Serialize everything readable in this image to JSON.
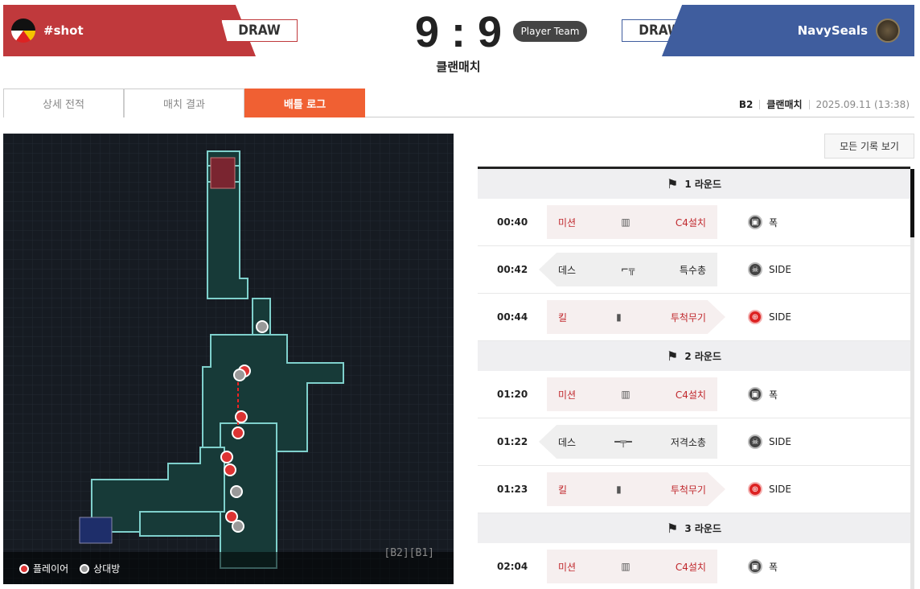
{
  "header": {
    "left_team": "#shot",
    "left_result": "DRAW",
    "score": "9 : 9",
    "player_type": "Player Team",
    "right_result": "DRAW",
    "right_team": "NavySeals",
    "match_type": "클랜매치",
    "colors": {
      "left": "#c0393c",
      "right": "#3f5d9e",
      "accent": "#f06033"
    }
  },
  "tabs": [
    {
      "label": "상세 전적"
    },
    {
      "label": "매치 결과"
    },
    {
      "label": "배틀 로그",
      "active": true
    }
  ],
  "meta": {
    "map": "B2",
    "mode": "클랜매치",
    "date": "2025.09.11 (13:38)"
  },
  "map": {
    "legend_player": "플레이어",
    "legend_enemy": "상대방",
    "floors": "[B2][B1]"
  },
  "log": {
    "all_button": "모든 기록 보기",
    "rounds": [
      {
        "label": "1 라운드",
        "events": [
          {
            "time": "00:40",
            "type": "mission",
            "kind": "미션",
            "icon": "c4-icon",
            "detail": "C4설치",
            "result_icon": "bomb-icon",
            "result": "폭"
          },
          {
            "time": "00:42",
            "type": "death",
            "kind": "데스",
            "icon": "smg-icon",
            "detail": "특수총",
            "result_icon": "skull-icon",
            "result": "SIDE"
          },
          {
            "time": "00:44",
            "type": "kill",
            "kind": "킬",
            "icon": "grenade-icon",
            "detail": "투척무기",
            "result_icon": "crosshair-icon",
            "result": "SIDE"
          }
        ]
      },
      {
        "label": "2 라운드",
        "events": [
          {
            "time": "01:20",
            "type": "mission",
            "kind": "미션",
            "icon": "c4-icon",
            "detail": "C4설치",
            "result_icon": "bomb-icon",
            "result": "폭"
          },
          {
            "time": "01:22",
            "type": "death",
            "kind": "데스",
            "icon": "sniper-icon",
            "detail": "저격소총",
            "result_icon": "skull-icon",
            "result": "SIDE"
          },
          {
            "time": "01:23",
            "type": "kill",
            "kind": "킬",
            "icon": "grenade-icon",
            "detail": "투척무기",
            "result_icon": "crosshair-icon",
            "result": "SIDE"
          }
        ]
      },
      {
        "label": "3 라운드",
        "events": [
          {
            "time": "02:04",
            "type": "mission",
            "kind": "미션",
            "icon": "c4-icon",
            "detail": "C4설치",
            "result_icon": "bomb-icon",
            "result": "폭"
          }
        ]
      }
    ]
  }
}
